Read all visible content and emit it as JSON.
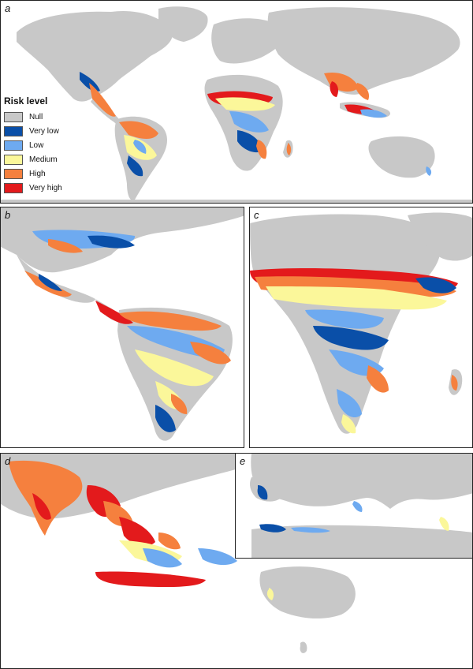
{
  "panels": [
    {
      "label": "a",
      "region": "world"
    },
    {
      "label": "b",
      "region": "americas"
    },
    {
      "label": "c",
      "region": "africa"
    },
    {
      "label": "d",
      "region": "south-southeast-asia-oceania"
    },
    {
      "label": "e",
      "region": "mediterranean"
    }
  ],
  "legend": {
    "title": "Risk level",
    "items": [
      {
        "label": "Null",
        "color": "#c8c8c8"
      },
      {
        "label": "Very low",
        "color": "#0a4fa8"
      },
      {
        "label": "Low",
        "color": "#6eaaf0"
      },
      {
        "label": "Medium",
        "color": "#fbf79a"
      },
      {
        "label": "High",
        "color": "#f5803e"
      },
      {
        "label": "Very high",
        "color": "#e31a1c"
      }
    ]
  }
}
